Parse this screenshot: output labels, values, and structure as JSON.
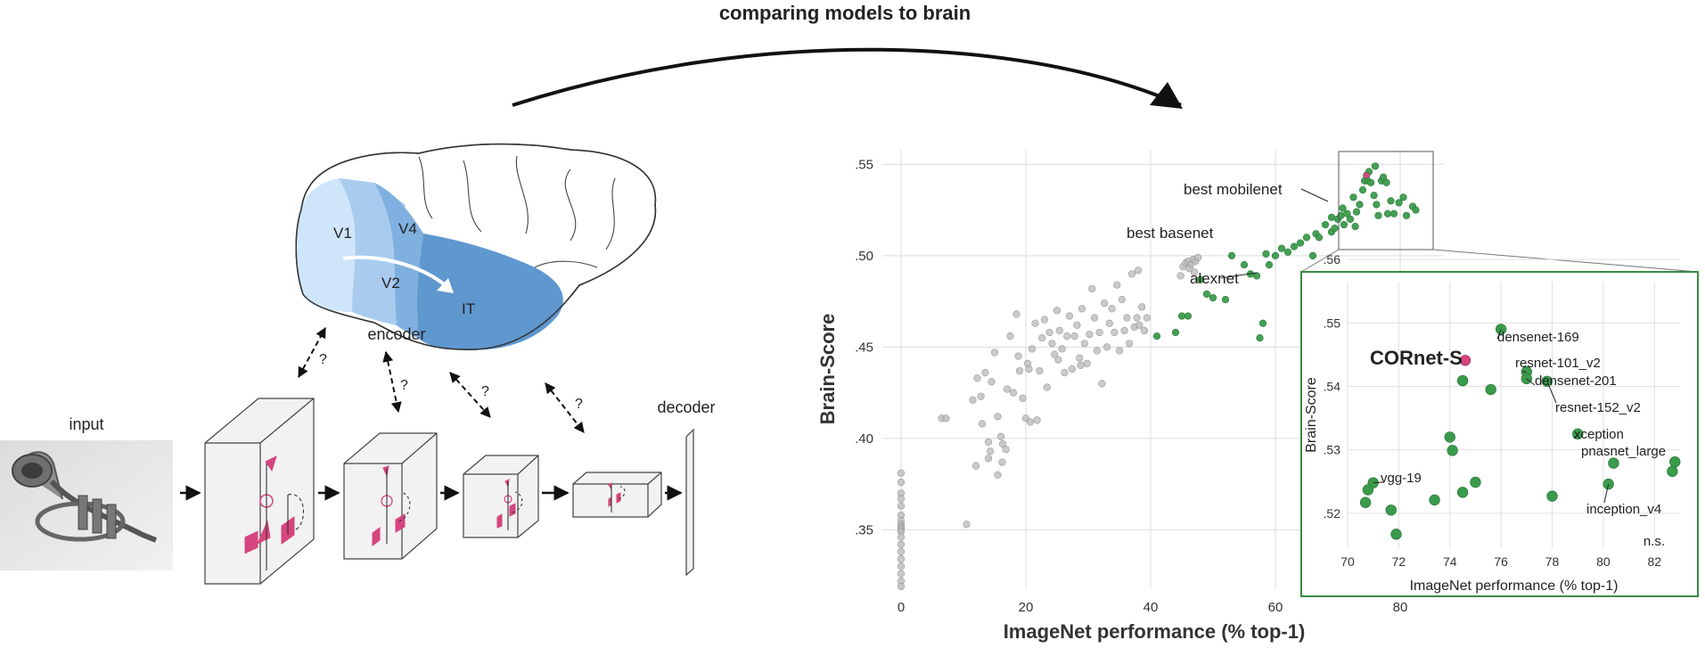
{
  "header": {
    "title": "comparing models to brain"
  },
  "diagram": {
    "input_label": "input",
    "encoder_label": "encoder",
    "decoder_label": "decoder",
    "question_mark": "?",
    "areas": {
      "v1": "V1",
      "v2": "V2",
      "v4": "V4",
      "it": "IT"
    },
    "colors": {
      "v1": "#cfe6fa",
      "v2": "#a9ccee",
      "v4": "#7fb0e0",
      "it": "#5f97cf",
      "pink": "#d6457e"
    }
  },
  "chart_data": [
    {
      "type": "scatter",
      "xlabel": "ImageNet performance (% top-1)",
      "ylabel": "Brain-Score",
      "xlim": [
        -3,
        87
      ],
      "ylim": [
        0.318,
        0.558
      ],
      "xticks": [
        "0",
        "20",
        "40",
        "60",
        "80"
      ],
      "yticks": [
        ".35",
        ".40",
        ".45",
        ".50",
        ".55"
      ],
      "colors": {
        "gray": "#b8b8b8",
        "green": "#3b9b4c",
        "highlight": "#d6457e"
      },
      "annotations": [
        "best mobilenet",
        "best basenet",
        "alexnet"
      ],
      "series": [
        {
          "group": "gray",
          "points": [
            [
              0,
              0.381
            ],
            [
              0,
              0.376
            ],
            [
              0,
              0.37
            ],
            [
              0,
              0.367
            ],
            [
              0,
              0.363
            ],
            [
              0,
              0.358
            ],
            [
              0,
              0.355
            ],
            [
              0,
              0.353
            ],
            [
              0,
              0.352
            ],
            [
              0,
              0.351
            ],
            [
              0,
              0.35
            ],
            [
              0,
              0.349
            ],
            [
              0,
              0.346
            ],
            [
              0,
              0.342
            ],
            [
              0,
              0.338
            ],
            [
              0,
              0.334
            ],
            [
              0,
              0.33
            ],
            [
              0,
              0.326
            ],
            [
              0,
              0.322
            ],
            [
              0,
              0.319
            ],
            [
              6.5,
              0.411
            ],
            [
              7.2,
              0.411
            ],
            [
              10.5,
              0.353
            ],
            [
              11.5,
              0.421
            ],
            [
              12.2,
              0.433
            ],
            [
              12.8,
              0.423
            ],
            [
              13.0,
              0.408
            ],
            [
              13.5,
              0.436
            ],
            [
              12.0,
              0.385
            ],
            [
              14.0,
              0.389
            ],
            [
              14.5,
              0.431
            ],
            [
              15.0,
              0.447
            ],
            [
              15.5,
              0.412
            ],
            [
              16.0,
              0.401
            ],
            [
              16.3,
              0.397
            ],
            [
              16.8,
              0.394
            ],
            [
              17.0,
              0.427
            ],
            [
              17.5,
              0.456
            ],
            [
              18.0,
              0.425
            ],
            [
              18.5,
              0.468
            ],
            [
              18.8,
              0.445
            ],
            [
              19.0,
              0.437
            ],
            [
              19.5,
              0.422
            ],
            [
              20.0,
              0.411
            ],
            [
              20.3,
              0.441
            ],
            [
              20.7,
              0.409
            ],
            [
              21.0,
              0.449
            ],
            [
              21.5,
              0.463
            ],
            [
              21.8,
              0.41
            ],
            [
              22.2,
              0.437
            ],
            [
              22.6,
              0.455
            ],
            [
              23.0,
              0.465
            ],
            [
              23.4,
              0.428
            ],
            [
              23.8,
              0.458
            ],
            [
              24.2,
              0.452
            ],
            [
              24.6,
              0.446
            ],
            [
              25.0,
              0.47
            ],
            [
              25.4,
              0.459
            ],
            [
              25.8,
              0.449
            ],
            [
              26.2,
              0.436
            ],
            [
              26.6,
              0.456
            ],
            [
              27.0,
              0.467
            ],
            [
              27.4,
              0.438
            ],
            [
              27.8,
              0.456
            ],
            [
              28.2,
              0.462
            ],
            [
              28.6,
              0.444
            ],
            [
              29.0,
              0.471
            ],
            [
              29.4,
              0.452
            ],
            [
              29.8,
              0.441
            ],
            [
              30.2,
              0.457
            ],
            [
              30.6,
              0.482
            ],
            [
              31.0,
              0.466
            ],
            [
              31.4,
              0.448
            ],
            [
              31.8,
              0.458
            ],
            [
              32.2,
              0.43
            ],
            [
              32.6,
              0.474
            ],
            [
              33.0,
              0.45
            ],
            [
              33.4,
              0.463
            ],
            [
              33.8,
              0.471
            ],
            [
              34.2,
              0.458
            ],
            [
              34.6,
              0.484
            ],
            [
              35.0,
              0.448
            ],
            [
              35.4,
              0.476
            ],
            [
              35.8,
              0.459
            ],
            [
              36.2,
              0.466
            ],
            [
              36.6,
              0.452
            ],
            [
              37.0,
              0.49
            ],
            [
              37.4,
              0.461
            ],
            [
              37.8,
              0.466
            ],
            [
              38.2,
              0.462
            ],
            [
              38.6,
              0.472
            ],
            [
              39.0,
              0.459
            ],
            [
              39.4,
              0.466
            ],
            [
              14.0,
              0.398
            ],
            [
              14.3,
              0.393
            ],
            [
              15.5,
              0.38
            ],
            [
              16.2,
              0.387
            ],
            [
              20.5,
              0.438
            ],
            [
              25.2,
              0.443
            ],
            [
              28.8,
              0.44
            ],
            [
              38.0,
              0.492
            ],
            [
              45.2,
              0.494
            ],
            [
              45.6,
              0.496
            ],
            [
              46.0,
              0.497
            ],
            [
              46.4,
              0.495
            ],
            [
              46.8,
              0.498
            ],
            [
              47.2,
              0.497
            ],
            [
              47.6,
              0.499
            ],
            [
              46.2,
              0.493
            ],
            [
              44.8,
              0.489
            ],
            [
              47.0,
              0.491
            ]
          ]
        },
        {
          "group": "green",
          "points": [
            [
              41.0,
              0.456
            ],
            [
              44.0,
              0.458
            ],
            [
              45.0,
              0.467
            ],
            [
              46.0,
              0.467
            ],
            [
              48.0,
              0.487
            ],
            [
              49.0,
              0.479
            ],
            [
              50.0,
              0.477
            ],
            [
              52.0,
              0.476
            ],
            [
              53.0,
              0.5
            ],
            [
              55.0,
              0.495
            ],
            [
              56.0,
              0.49
            ],
            [
              57.0,
              0.489
            ],
            [
              57.5,
              0.455
            ],
            [
              58.0,
              0.463
            ],
            [
              58.5,
              0.501
            ],
            [
              59.0,
              0.495
            ],
            [
              60.0,
              0.5
            ],
            [
              61.0,
              0.504
            ],
            [
              62.0,
              0.502
            ],
            [
              63.0,
              0.505
            ],
            [
              64.0,
              0.507
            ],
            [
              65.0,
              0.51
            ],
            [
              66.0,
              0.5
            ],
            [
              66.5,
              0.512
            ],
            [
              67.0,
              0.51
            ],
            [
              68.0,
              0.517
            ],
            [
              69.0,
              0.513
            ],
            [
              69.5,
              0.515
            ],
            [
              70.0,
              0.52
            ],
            [
              70.5,
              0.522
            ],
            [
              71.0,
              0.517
            ],
            [
              71.5,
              0.523
            ],
            [
              72.0,
              0.52
            ],
            [
              72.5,
              0.532
            ],
            [
              73.0,
              0.524
            ],
            [
              73.5,
              0.528
            ],
            [
              74.0,
              0.536
            ],
            [
              74.3,
              0.541
            ],
            [
              74.8,
              0.541
            ],
            [
              75.0,
              0.546
            ],
            [
              75.3,
              0.54
            ],
            [
              75.8,
              0.533
            ],
            [
              76.0,
              0.549
            ],
            [
              76.2,
              0.528
            ],
            [
              76.5,
              0.522
            ],
            [
              77.0,
              0.541
            ],
            [
              77.3,
              0.543
            ],
            [
              77.8,
              0.54
            ],
            [
              78.0,
              0.523
            ],
            [
              78.5,
              0.53
            ],
            [
              79.0,
              0.523
            ],
            [
              79.8,
              0.529
            ],
            [
              80.5,
              0.532
            ],
            [
              81.0,
              0.522
            ],
            [
              82.0,
              0.527
            ],
            [
              82.5,
              0.525
            ],
            [
              72.8,
              0.516
            ],
            [
              69.0,
              0.521
            ],
            [
              70.8,
              0.526
            ]
          ]
        },
        {
          "group": "highlight",
          "points": [
            [
              74.6,
              0.544
            ]
          ]
        }
      ]
    },
    {
      "type": "scatter",
      "xlabel": "ImageNet performance (% top-1)",
      "ylabel": "Brain-Score",
      "xlim": [
        70,
        83
      ],
      "ylim": [
        0.5145,
        0.5565
      ],
      "xticks": [
        "70",
        "72",
        "74",
        "76",
        "78",
        "80",
        "82"
      ],
      "yticks": [
        ".52",
        ".53",
        ".54",
        ".55",
        ".56"
      ],
      "note": "n.s.",
      "highlight_label": "CORnet-S",
      "labels": [
        "densenet-169",
        "resnet-101_v2",
        "densenet-201",
        "resnet-152_v2",
        "xception",
        "pnasnet_large",
        "inception_v4",
        "vgg-19"
      ],
      "points": [
        {
          "x": 74.6,
          "y": 0.5441,
          "group": "highlight"
        },
        {
          "x": 76.0,
          "y": 0.549,
          "group": "green"
        },
        {
          "x": 77.0,
          "y": 0.5423,
          "group": "green"
        },
        {
          "x": 77.0,
          "y": 0.5412,
          "group": "green"
        },
        {
          "x": 77.8,
          "y": 0.5408,
          "group": "green"
        },
        {
          "x": 75.6,
          "y": 0.5395,
          "group": "green"
        },
        {
          "x": 74.5,
          "y": 0.5409,
          "group": "green"
        },
        {
          "x": 74.0,
          "y": 0.532,
          "group": "green"
        },
        {
          "x": 74.1,
          "y": 0.5299,
          "group": "green"
        },
        {
          "x": 79.0,
          "y": 0.5325,
          "group": "green"
        },
        {
          "x": 80.4,
          "y": 0.5279,
          "group": "green"
        },
        {
          "x": 82.7,
          "y": 0.5266,
          "group": "green"
        },
        {
          "x": 82.8,
          "y": 0.5281,
          "group": "green"
        },
        {
          "x": 80.2,
          "y": 0.5246,
          "group": "green"
        },
        {
          "x": 75.0,
          "y": 0.5249,
          "group": "green"
        },
        {
          "x": 74.5,
          "y": 0.5233,
          "group": "green"
        },
        {
          "x": 73.4,
          "y": 0.5221,
          "group": "green"
        },
        {
          "x": 78.0,
          "y": 0.5227,
          "group": "green"
        },
        {
          "x": 71.0,
          "y": 0.5248,
          "group": "green"
        },
        {
          "x": 70.8,
          "y": 0.5237,
          "group": "green"
        },
        {
          "x": 70.7,
          "y": 0.5217,
          "group": "green"
        },
        {
          "x": 71.7,
          "y": 0.5205,
          "group": "green"
        },
        {
          "x": 71.9,
          "y": 0.5167,
          "group": "green"
        }
      ]
    }
  ]
}
